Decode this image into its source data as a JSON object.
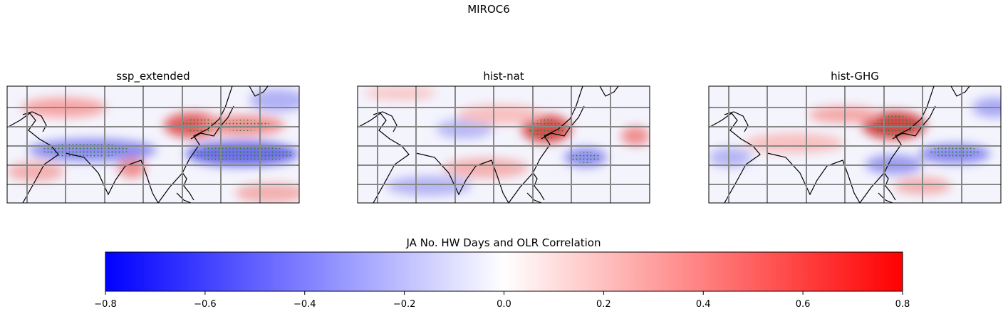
{
  "title": "MIROC6",
  "panels": [
    {
      "title": "ssp_extended"
    },
    {
      "title": "hist-nat"
    },
    {
      "title": "hist-GHG"
    }
  ],
  "colorbar": {
    "label": "JA No. HW Days and OLR Correlation",
    "lim": [
      -0.8,
      0.8
    ],
    "colormap": [
      "#0000ff",
      "#ffffff",
      "#ff0000"
    ],
    "ticks": [
      {
        "value": -0.8,
        "label": "−0.8"
      },
      {
        "value": -0.6,
        "label": "−0.6"
      },
      {
        "value": -0.4,
        "label": "−0.4"
      },
      {
        "value": -0.2,
        "label": "−0.2"
      },
      {
        "value": 0,
        "label": "0.0"
      },
      0.2,
      0.4,
      0.6,
      0.8
    ]
  }
}
